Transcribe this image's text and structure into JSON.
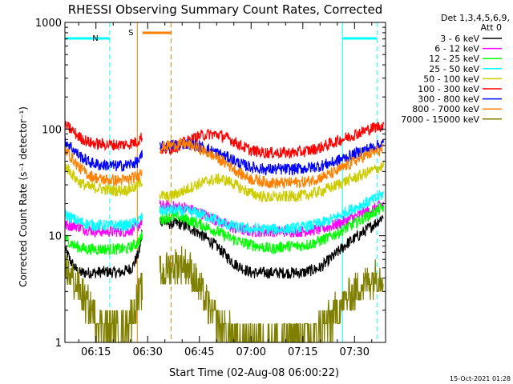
{
  "chart_data": {
    "type": "line",
    "title": "RHESSI Observing Summary Count Rates, Corrected",
    "xlabel": "Start Time (02-Aug-08 06:00:22)",
    "ylabel": "Corrected Count Rate (s⁻¹ detector⁻¹)",
    "y_scale": "log",
    "ylim": [
      1,
      1000
    ],
    "x_range_minutes": [
      6.0,
      99.0
    ],
    "xtick_labels": [
      "06:15",
      "06:30",
      "06:45",
      "07:00",
      "07:15",
      "07:30"
    ],
    "xtick_minutes": [
      15,
      30,
      45,
      60,
      75,
      90
    ],
    "ytick_labels": [
      "1",
      "10",
      "100",
      "1000"
    ],
    "ytick_values": [
      1,
      10,
      100,
      1000
    ],
    "legend_header": [
      "Det 1,3,4,5,6,9,",
      "Att 0"
    ],
    "legend_placement": "right",
    "footer": "15-Oct-2021 01:28",
    "night_label": "N",
    "saa_label": "S",
    "night_intervals": [
      [
        6.0,
        19.0
      ],
      [
        86.5,
        96.5
      ]
    ],
    "saa_interval": [
      27.0,
      36.8
    ],
    "gap": [
      28.5,
      33.5
    ],
    "series": [
      {
        "name": "3 - 6 keV",
        "color": "#000000",
        "points": [
          [
            6,
            7.5
          ],
          [
            8,
            5.5
          ],
          [
            10,
            4.5
          ],
          [
            14,
            4.5
          ],
          [
            18,
            4.6
          ],
          [
            22,
            4.5
          ],
          [
            25.5,
            5
          ],
          [
            27.5,
            7
          ],
          [
            28.4,
            11
          ],
          [
            33.6,
            14
          ],
          [
            36,
            13
          ],
          [
            39,
            13
          ],
          [
            42,
            12
          ],
          [
            46,
            10
          ],
          [
            50,
            8
          ],
          [
            55,
            5.5
          ],
          [
            60,
            4.5
          ],
          [
            65,
            4.5
          ],
          [
            70,
            4.5
          ],
          [
            75,
            4.5
          ],
          [
            80,
            5
          ],
          [
            84,
            6.5
          ],
          [
            88,
            8.5
          ],
          [
            92,
            10.5
          ],
          [
            96,
            13
          ],
          [
            98.5,
            15.5
          ]
        ]
      },
      {
        "name": "6 - 12 keV",
        "color": "#ff00ff",
        "points": [
          [
            6,
            12.5
          ],
          [
            9,
            12.5
          ],
          [
            12,
            11.5
          ],
          [
            15,
            11
          ],
          [
            18,
            11
          ],
          [
            21,
            11
          ],
          [
            24,
            11
          ],
          [
            27,
            12
          ],
          [
            28.4,
            14
          ],
          [
            33.6,
            19
          ],
          [
            36,
            19
          ],
          [
            40,
            18.5
          ],
          [
            44,
            17
          ],
          [
            48,
            15
          ],
          [
            52,
            13
          ],
          [
            56,
            11.5
          ],
          [
            60,
            11
          ],
          [
            65,
            11
          ],
          [
            70,
            11
          ],
          [
            75,
            11
          ],
          [
            80,
            11.5
          ],
          [
            84,
            12.5
          ],
          [
            88,
            14
          ],
          [
            92,
            16
          ],
          [
            96,
            18
          ],
          [
            98.5,
            20
          ]
        ]
      },
      {
        "name": "12 - 25 keV",
        "color": "#00ff00",
        "points": [
          [
            6,
            9.5
          ],
          [
            9,
            8
          ],
          [
            12,
            7.5
          ],
          [
            15,
            7.5
          ],
          [
            18,
            7.5
          ],
          [
            21,
            7.5
          ],
          [
            24,
            7.5
          ],
          [
            27,
            8.5
          ],
          [
            28.4,
            10
          ],
          [
            33.6,
            14
          ],
          [
            36,
            15
          ],
          [
            39,
            15
          ],
          [
            42,
            14
          ],
          [
            46,
            12.5
          ],
          [
            50,
            11
          ],
          [
            54,
            9.5
          ],
          [
            58,
            8.5
          ],
          [
            62,
            8
          ],
          [
            66,
            7.5
          ],
          [
            70,
            8
          ],
          [
            74,
            8
          ],
          [
            78,
            8.5
          ],
          [
            82,
            9.5
          ],
          [
            86,
            11
          ],
          [
            90,
            13
          ],
          [
            94,
            15.5
          ],
          [
            98.5,
            18.5
          ]
        ]
      },
      {
        "name": "25 - 50 keV",
        "color": "#00ffff",
        "points": [
          [
            6,
            16
          ],
          [
            9,
            14
          ],
          [
            12,
            13
          ],
          [
            15,
            12.5
          ],
          [
            18,
            12.5
          ],
          [
            21,
            12.5
          ],
          [
            24,
            12.5
          ],
          [
            27,
            13.5
          ],
          [
            28.4,
            15
          ],
          [
            33.6,
            17
          ],
          [
            36,
            17.5
          ],
          [
            40,
            17
          ],
          [
            44,
            16.5
          ],
          [
            48,
            15
          ],
          [
            52,
            13
          ],
          [
            56,
            12
          ],
          [
            60,
            11.5
          ],
          [
            65,
            11.5
          ],
          [
            70,
            11.5
          ],
          [
            75,
            12
          ],
          [
            80,
            13
          ],
          [
            84,
            14.5
          ],
          [
            88,
            17
          ],
          [
            92,
            19.5
          ],
          [
            96,
            22
          ],
          [
            98.5,
            25
          ]
        ]
      },
      {
        "name": "50 - 100 keV",
        "color": "#cccc00",
        "points": [
          [
            6,
            46
          ],
          [
            8,
            38
          ],
          [
            10,
            32
          ],
          [
            13,
            28.5
          ],
          [
            16,
            28
          ],
          [
            18,
            27
          ],
          [
            21,
            26.5
          ],
          [
            24,
            27
          ],
          [
            27,
            29
          ],
          [
            28.4,
            33
          ],
          [
            33.6,
            24
          ],
          [
            36,
            23
          ],
          [
            40,
            26
          ],
          [
            44,
            30
          ],
          [
            48,
            33
          ],
          [
            51,
            34
          ],
          [
            54,
            32
          ],
          [
            57,
            28
          ],
          [
            60,
            25
          ],
          [
            64,
            23
          ],
          [
            68,
            23
          ],
          [
            72,
            23.5
          ],
          [
            76,
            24
          ],
          [
            80,
            26
          ],
          [
            84,
            29
          ],
          [
            88,
            33
          ],
          [
            92,
            37
          ],
          [
            96,
            42
          ],
          [
            98.5,
            45
          ]
        ]
      },
      {
        "name": "100 - 300 keV",
        "color": "#ff0000",
        "points": [
          [
            6,
            108
          ],
          [
            8,
            98
          ],
          [
            10,
            85
          ],
          [
            13,
            75
          ],
          [
            16,
            72
          ],
          [
            18,
            72
          ],
          [
            21,
            71
          ],
          [
            24,
            72
          ],
          [
            27,
            76
          ],
          [
            28.4,
            86
          ],
          [
            33.6,
            65
          ],
          [
            36,
            64
          ],
          [
            39,
            70
          ],
          [
            42,
            78
          ],
          [
            45,
            86
          ],
          [
            48,
            90
          ],
          [
            51,
            88
          ],
          [
            54,
            80
          ],
          [
            57,
            70
          ],
          [
            60,
            63
          ],
          [
            64,
            60
          ],
          [
            68,
            60
          ],
          [
            72,
            60
          ],
          [
            76,
            62
          ],
          [
            80,
            67
          ],
          [
            84,
            75
          ],
          [
            88,
            84
          ],
          [
            92,
            94
          ],
          [
            96,
            104
          ],
          [
            98.5,
            108
          ]
        ]
      },
      {
        "name": "300 - 800 keV",
        "color": "#0000ff",
        "points": [
          [
            6,
            78
          ],
          [
            8,
            67
          ],
          [
            10,
            57
          ],
          [
            13,
            49
          ],
          [
            16,
            46
          ],
          [
            18,
            46
          ],
          [
            21,
            45
          ],
          [
            24,
            46
          ],
          [
            27,
            49
          ],
          [
            28.4,
            56
          ],
          [
            33.6,
            68
          ],
          [
            36,
            70
          ],
          [
            40,
            73
          ],
          [
            43,
            72
          ],
          [
            46,
            67
          ],
          [
            50,
            60
          ],
          [
            54,
            53
          ],
          [
            57,
            47
          ],
          [
            60,
            44
          ],
          [
            64,
            42
          ],
          [
            68,
            42
          ],
          [
            72,
            42
          ],
          [
            76,
            43
          ],
          [
            80,
            45
          ],
          [
            84,
            49
          ],
          [
            88,
            55
          ],
          [
            92,
            62
          ],
          [
            96,
            69
          ],
          [
            98.5,
            73
          ]
        ]
      },
      {
        "name": "800 - 7000 keV",
        "color": "#ff8000",
        "points": [
          [
            6,
            64
          ],
          [
            8,
            54
          ],
          [
            10,
            44
          ],
          [
            13,
            37
          ],
          [
            16,
            34
          ],
          [
            18,
            33.5
          ],
          [
            21,
            33
          ],
          [
            24,
            33.5
          ],
          [
            27,
            36
          ],
          [
            28.4,
            41
          ],
          [
            33.6,
            66
          ],
          [
            36,
            70
          ],
          [
            40,
            73
          ],
          [
            43,
            70
          ],
          [
            46,
            63
          ],
          [
            50,
            54
          ],
          [
            54,
            45
          ],
          [
            57,
            38
          ],
          [
            60,
            34
          ],
          [
            64,
            32
          ],
          [
            68,
            31
          ],
          [
            72,
            31.5
          ],
          [
            76,
            32
          ],
          [
            80,
            35
          ],
          [
            84,
            39
          ],
          [
            88,
            46
          ],
          [
            92,
            54
          ],
          [
            96,
            61
          ],
          [
            98.5,
            64
          ]
        ]
      },
      {
        "name": "7000 - 15000 keV",
        "color": "#808000",
        "points": [
          [
            6,
            5
          ],
          [
            8,
            4
          ],
          [
            10,
            3.2
          ],
          [
            12,
            2.4
          ],
          [
            14,
            1.9
          ],
          [
            16,
            1.6
          ],
          [
            18,
            1.4
          ],
          [
            20,
            1.3
          ],
          [
            22,
            1.3
          ],
          [
            24,
            1.5
          ],
          [
            26,
            2
          ],
          [
            28,
            3
          ],
          [
            28.4,
            3.3
          ],
          [
            33.6,
            4.3
          ],
          [
            36,
            5
          ],
          [
            38,
            5.3
          ],
          [
            40,
            5.5
          ],
          [
            42,
            5
          ],
          [
            44,
            3.8
          ],
          [
            46,
            2.8
          ],
          [
            48,
            2
          ],
          [
            50,
            1.6
          ],
          [
            52,
            1.3
          ],
          [
            55,
            1.15
          ],
          [
            58,
            1.1
          ],
          [
            62,
            1.05
          ],
          [
            66,
            1.05
          ],
          [
            70,
            1.1
          ],
          [
            74,
            1.1
          ],
          [
            78,
            1.2
          ],
          [
            82,
            1.5
          ],
          [
            85,
            2
          ],
          [
            88,
            2.6
          ],
          [
            91,
            3.2
          ],
          [
            94,
            3.8
          ],
          [
            96,
            4.2
          ],
          [
            98.5,
            4.5
          ]
        ]
      }
    ]
  }
}
